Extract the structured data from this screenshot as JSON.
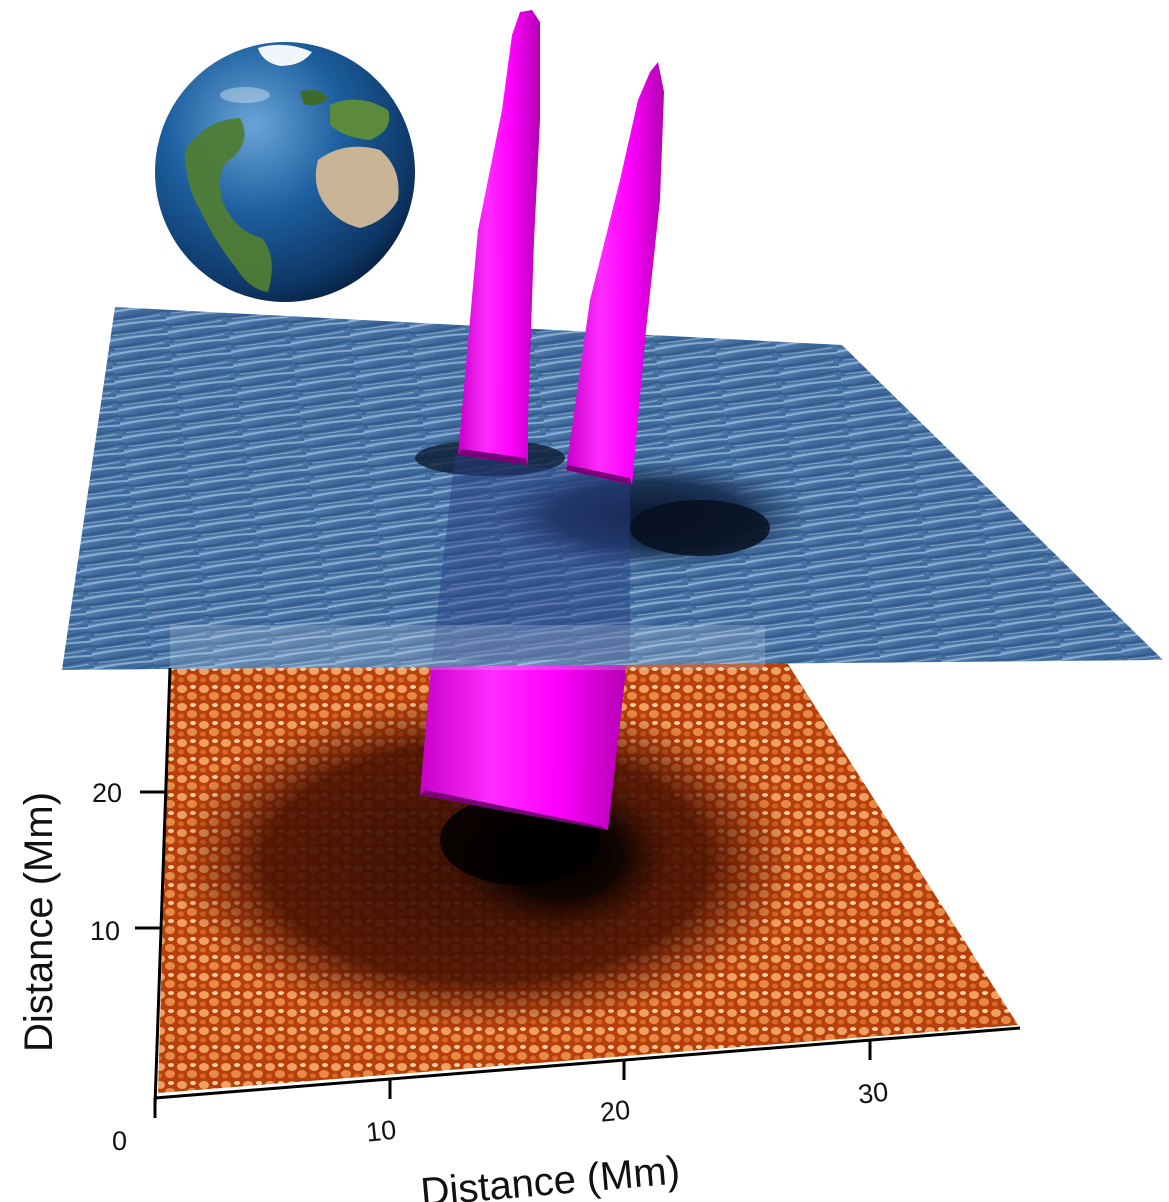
{
  "figure": {
    "x_axis": {
      "label": "Distance (Mm)",
      "ticks": [
        "0",
        "10",
        "20",
        "30"
      ]
    },
    "y_axis": {
      "label": "Distance (Mm)",
      "ticks": [
        "10",
        "20"
      ]
    },
    "layers": {
      "chromosphere_color": "#3f6a98",
      "photosphere_color": "#c84a12",
      "flux_tube_color": "#ff00ff",
      "umbra_color": "#0a0300"
    },
    "earth": {
      "ocean_color": "#1c5f9e",
      "land_color": "#4d7a34"
    }
  }
}
